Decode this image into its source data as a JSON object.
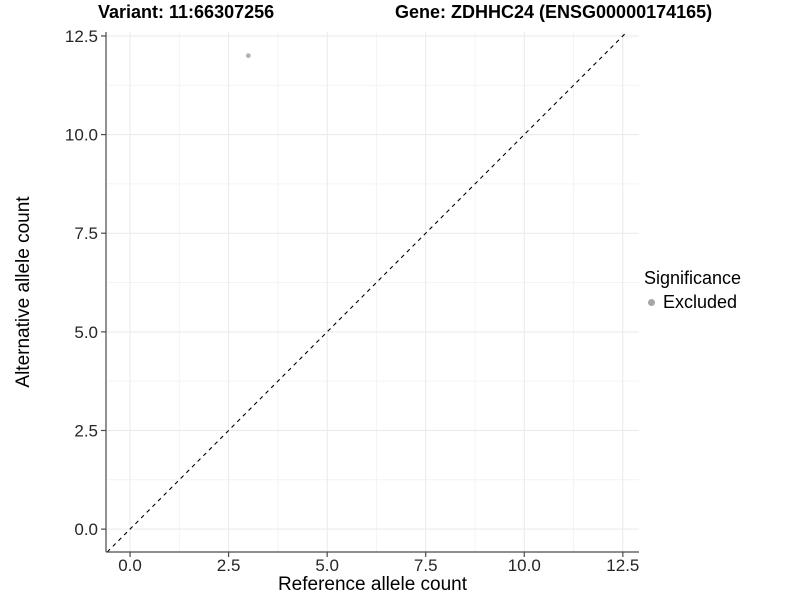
{
  "chart_data": {
    "type": "scatter",
    "title_left": "Variant: 11:66307256",
    "title_right": "Gene: ZDHHC24 (ENSG00000174165)",
    "xlabel": "Reference allele count",
    "ylabel": "Alternative allele count",
    "x_ticks": {
      "values": [
        0,
        2.5,
        5,
        7.5,
        10,
        12.5
      ],
      "labels": [
        "0.0",
        "2.5",
        "5.0",
        "7.5",
        "10.0",
        "12.5"
      ]
    },
    "y_ticks": {
      "values": [
        0,
        2.5,
        5,
        7.5,
        10,
        12.5
      ],
      "labels": [
        "0.0",
        "2.5",
        "5.0",
        "7.5",
        "10.0",
        "12.5"
      ]
    },
    "xlim": [
      -0.61,
      12.91
    ],
    "ylim": [
      -0.58,
      12.6
    ],
    "grid": {
      "major": true,
      "minor": true
    },
    "identity_line": {
      "slope": 1,
      "intercept": 0,
      "style": "dashed"
    },
    "series": [
      {
        "name": "Excluded",
        "color": "#b3b3b3",
        "points": [
          {
            "x": 3,
            "y": 12
          }
        ]
      }
    ],
    "legend": {
      "title": "Significance",
      "position": "right",
      "items": [
        {
          "label": "Excluded",
          "color": "#a6a6a6"
        }
      ]
    },
    "colors": {
      "background": "#ffffff",
      "grid_major": "#e9e9e9",
      "grid_minor": "#f4f4f4",
      "axis_line": "#4a4a4a",
      "tick_mark": "#4a4a4a",
      "tick_label": "#262626",
      "identity_line": "#000000"
    }
  }
}
